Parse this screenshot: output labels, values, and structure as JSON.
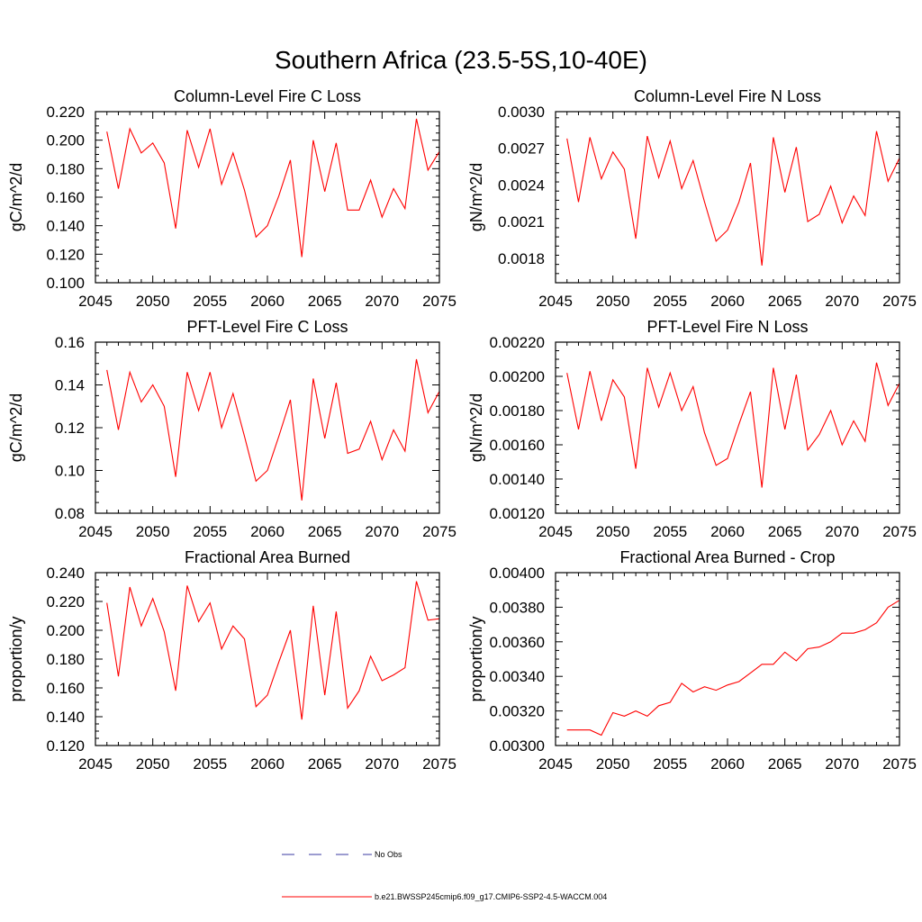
{
  "title": "Southern Africa (23.5-5S,10-40E)",
  "legend": {
    "items": [
      {
        "label": "No Obs",
        "style": "dashed",
        "color": "#3a3aa0"
      },
      {
        "label": "b.e21.BWSSP245cmip6.f09_g17.CMIP6-SSP2-4.5-WACCM.004",
        "style": "solid",
        "color": "#ff0000"
      }
    ]
  },
  "chart_data": [
    {
      "type": "line",
      "title": "Column-Level Fire C Loss",
      "ylabel": "gC/m^2/d",
      "xlim": [
        2045,
        2075
      ],
      "ylim": [
        0.1,
        0.22
      ],
      "xticks": [
        "2045",
        "2050",
        "2055",
        "2060",
        "2065",
        "2070",
        "2075"
      ],
      "yticks": [
        "0.100",
        "0.120",
        "0.140",
        "0.160",
        "0.180",
        "0.200",
        "0.220"
      ],
      "color": "#ff0000",
      "x": [
        2046,
        2047,
        2048,
        2049,
        2050,
        2051,
        2052,
        2053,
        2054,
        2055,
        2056,
        2057,
        2058,
        2059,
        2060,
        2061,
        2062,
        2063,
        2064,
        2065,
        2066,
        2067,
        2068,
        2069,
        2070,
        2071,
        2072,
        2073,
        2074,
        2075
      ],
      "values": [
        0.206,
        0.166,
        0.208,
        0.191,
        0.198,
        0.184,
        0.138,
        0.207,
        0.181,
        0.208,
        0.169,
        0.191,
        0.165,
        0.132,
        0.14,
        0.161,
        0.186,
        0.118,
        0.2,
        0.164,
        0.198,
        0.151,
        0.151,
        0.172,
        0.146,
        0.166,
        0.152,
        0.215,
        0.179,
        0.192
      ]
    },
    {
      "type": "line",
      "title": "Column-Level Fire N Loss",
      "ylabel": "gN/m^2/d",
      "xlim": [
        2045,
        2075
      ],
      "ylim": [
        0.0016,
        0.003
      ],
      "xticks": [
        "2045",
        "2050",
        "2055",
        "2060",
        "2065",
        "2070",
        "2075"
      ],
      "yticks": [
        "0.0018",
        "0.0021",
        "0.0024",
        "0.0027",
        "0.0030"
      ],
      "color": "#ff0000",
      "x": [
        2046,
        2047,
        2048,
        2049,
        2050,
        2051,
        2052,
        2053,
        2054,
        2055,
        2056,
        2057,
        2058,
        2059,
        2060,
        2061,
        2062,
        2063,
        2064,
        2065,
        2066,
        2067,
        2068,
        2069,
        2070,
        2071,
        2072,
        2073,
        2074,
        2075
      ],
      "values": [
        0.00278,
        0.00226,
        0.00279,
        0.00245,
        0.00267,
        0.00253,
        0.00196,
        0.0028,
        0.00246,
        0.00276,
        0.00237,
        0.0026,
        0.00226,
        0.00194,
        0.00203,
        0.00226,
        0.00258,
        0.00174,
        0.00279,
        0.00234,
        0.00271,
        0.0021,
        0.00216,
        0.00239,
        0.00209,
        0.00231,
        0.00215,
        0.00284,
        0.00243,
        0.00262
      ]
    },
    {
      "type": "line",
      "title": "PFT-Level Fire C Loss",
      "ylabel": "gC/m^2/d",
      "xlim": [
        2045,
        2075
      ],
      "ylim": [
        0.08,
        0.16
      ],
      "xticks": [
        "2045",
        "2050",
        "2055",
        "2060",
        "2065",
        "2070",
        "2075"
      ],
      "yticks": [
        "0.08",
        "0.10",
        "0.12",
        "0.14",
        "0.16"
      ],
      "color": "#ff0000",
      "x": [
        2046,
        2047,
        2048,
        2049,
        2050,
        2051,
        2052,
        2053,
        2054,
        2055,
        2056,
        2057,
        2058,
        2059,
        2060,
        2061,
        2062,
        2063,
        2064,
        2065,
        2066,
        2067,
        2068,
        2069,
        2070,
        2071,
        2072,
        2073,
        2074,
        2075
      ],
      "values": [
        0.147,
        0.119,
        0.146,
        0.132,
        0.14,
        0.13,
        0.097,
        0.146,
        0.128,
        0.146,
        0.12,
        0.136,
        0.116,
        0.095,
        0.1,
        0.116,
        0.133,
        0.086,
        0.143,
        0.115,
        0.141,
        0.108,
        0.11,
        0.123,
        0.105,
        0.119,
        0.109,
        0.152,
        0.127,
        0.137
      ]
    },
    {
      "type": "line",
      "title": "PFT-Level Fire N Loss",
      "ylabel": "gN/m^2/d",
      "xlim": [
        2045,
        2075
      ],
      "ylim": [
        0.0012,
        0.0022
      ],
      "xticks": [
        "2045",
        "2050",
        "2055",
        "2060",
        "2065",
        "2070",
        "2075"
      ],
      "yticks": [
        "0.00120",
        "0.00140",
        "0.00160",
        "0.00180",
        "0.00200",
        "0.00220"
      ],
      "color": "#ff0000",
      "x": [
        2046,
        2047,
        2048,
        2049,
        2050,
        2051,
        2052,
        2053,
        2054,
        2055,
        2056,
        2057,
        2058,
        2059,
        2060,
        2061,
        2062,
        2063,
        2064,
        2065,
        2066,
        2067,
        2068,
        2069,
        2070,
        2071,
        2072,
        2073,
        2074,
        2075
      ],
      "values": [
        0.00202,
        0.00169,
        0.00203,
        0.00174,
        0.00198,
        0.00188,
        0.00146,
        0.00205,
        0.00182,
        0.00202,
        0.0018,
        0.00194,
        0.00167,
        0.00148,
        0.00152,
        0.00172,
        0.00191,
        0.00135,
        0.00205,
        0.00169,
        0.00201,
        0.00157,
        0.00166,
        0.0018,
        0.0016,
        0.00174,
        0.00162,
        0.00208,
        0.00183,
        0.00196
      ]
    },
    {
      "type": "line",
      "title": "Fractional Area Burned",
      "ylabel": "proportion/y",
      "xlim": [
        2045,
        2075
      ],
      "ylim": [
        0.12,
        0.24
      ],
      "xticks": [
        "2045",
        "2050",
        "2055",
        "2060",
        "2065",
        "2070",
        "2075"
      ],
      "yticks": [
        "0.120",
        "0.140",
        "0.160",
        "0.180",
        "0.200",
        "0.220",
        "0.240"
      ],
      "color": "#ff0000",
      "x": [
        2046,
        2047,
        2048,
        2049,
        2050,
        2051,
        2052,
        2053,
        2054,
        2055,
        2056,
        2057,
        2058,
        2059,
        2060,
        2061,
        2062,
        2063,
        2064,
        2065,
        2066,
        2067,
        2068,
        2069,
        2070,
        2071,
        2072,
        2073,
        2074,
        2075
      ],
      "values": [
        0.219,
        0.168,
        0.23,
        0.203,
        0.222,
        0.199,
        0.158,
        0.231,
        0.206,
        0.219,
        0.187,
        0.203,
        0.194,
        0.147,
        0.155,
        0.178,
        0.2,
        0.138,
        0.217,
        0.155,
        0.213,
        0.146,
        0.158,
        0.182,
        0.165,
        0.169,
        0.174,
        0.234,
        0.207,
        0.208
      ]
    },
    {
      "type": "line",
      "title": "Fractional Area Burned - Crop",
      "ylabel": "proportion/y",
      "xlim": [
        2045,
        2075
      ],
      "ylim": [
        0.003,
        0.004
      ],
      "xticks": [
        "2045",
        "2050",
        "2055",
        "2060",
        "2065",
        "2070",
        "2075"
      ],
      "yticks": [
        "0.00300",
        "0.00320",
        "0.00340",
        "0.00360",
        "0.00380",
        "0.00400"
      ],
      "color": "#ff0000",
      "x": [
        2046,
        2047,
        2048,
        2049,
        2050,
        2051,
        2052,
        2053,
        2054,
        2055,
        2056,
        2057,
        2058,
        2059,
        2060,
        2061,
        2062,
        2063,
        2064,
        2065,
        2066,
        2067,
        2068,
        2069,
        2070,
        2071,
        2072,
        2073,
        2074,
        2075
      ],
      "values": [
        0.00309,
        0.00309,
        0.00309,
        0.00306,
        0.00319,
        0.00317,
        0.0032,
        0.00317,
        0.00323,
        0.00325,
        0.00336,
        0.00331,
        0.00334,
        0.00332,
        0.00335,
        0.00337,
        0.00342,
        0.00347,
        0.00347,
        0.00354,
        0.00349,
        0.00356,
        0.00357,
        0.0036,
        0.00365,
        0.00365,
        0.00367,
        0.00371,
        0.0038,
        0.00384
      ]
    }
  ]
}
